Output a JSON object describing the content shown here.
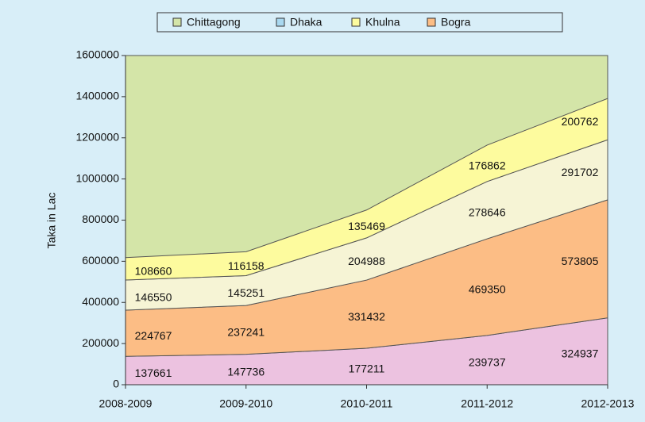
{
  "chart_data": {
    "type": "stacked_area",
    "y_label": "Taka in Lac",
    "categories": [
      "2008-2009",
      "2009-2010",
      "2010-2011",
      "2011-2012",
      "2012-2013"
    ],
    "series": [
      {
        "color": "#ecc2e0",
        "values": [
          137661,
          147736,
          177211,
          239737,
          324937
        ]
      },
      {
        "name": "Bogra",
        "color": "#fcbd85",
        "values": [
          224767,
          237241,
          331432,
          469350,
          573805
        ]
      },
      {
        "color": "#f6f4d5",
        "values": [
          146550,
          145251,
          204988,
          278646,
          291702
        ]
      },
      {
        "name": "Khulna",
        "color": "#fdfb9e",
        "values": [
          108660,
          116158,
          135469,
          176862,
          200762
        ]
      }
    ],
    "legend": [
      {
        "name": "Chittagong",
        "color": "#d4e5a8"
      },
      {
        "name": "Dhaka",
        "color": "#a9d8f0"
      },
      {
        "name": "Khulna",
        "color": "#fdfb9e"
      },
      {
        "name": "Bogra",
        "color": "#fcbd85"
      }
    ],
    "plot_background": "#d4e5a8",
    "ylim": [
      0,
      1600000
    ],
    "yticks": [
      0,
      200000,
      400000,
      600000,
      800000,
      1000000,
      1200000,
      1400000,
      1600000
    ],
    "grid": false
  }
}
